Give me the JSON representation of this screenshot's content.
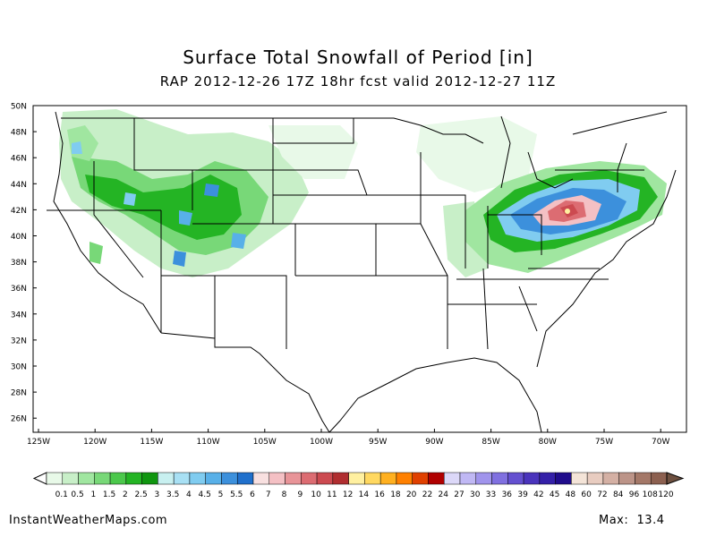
{
  "title": "Surface Total Snowfall of Period [in]",
  "subtitle": "RAP 2012-12-26 17Z 18hr fcst valid 2012-12-27 11Z",
  "lat_labels": [
    "50N",
    "48N",
    "46N",
    "44N",
    "42N",
    "40N",
    "38N",
    "36N",
    "34N",
    "32N",
    "30N",
    "28N",
    "26N"
  ],
  "lon_labels": [
    "125W",
    "120W",
    "115W",
    "110W",
    "105W",
    "100W",
    "95W",
    "90W",
    "85W",
    "80W",
    "75W",
    "70W"
  ],
  "legend": {
    "labels": [
      "0.1",
      "0.5",
      "1",
      "1.5",
      "2",
      "2.5",
      "3",
      "3.5",
      "4",
      "4.5",
      "5",
      "5.5",
      "6",
      "7",
      "8",
      "9",
      "10",
      "11",
      "12",
      "14",
      "16",
      "18",
      "20",
      "22",
      "24",
      "27",
      "30",
      "33",
      "36",
      "39",
      "42",
      "45",
      "48",
      "60",
      "72",
      "84",
      "96",
      "108",
      "120"
    ],
    "colors": [
      "#e8f9e8",
      "#c8efc8",
      "#a0e6a0",
      "#78d878",
      "#4cc84c",
      "#24b424",
      "#109610",
      "#c8f0f0",
      "#a8e0f4",
      "#80ccf0",
      "#58b0e8",
      "#3c90dc",
      "#2070cc",
      "#f8e0e0",
      "#f4c0c4",
      "#e89498",
      "#dc6c72",
      "#cc4a50",
      "#b02e30",
      "#fff0a0",
      "#ffd860",
      "#ffb020",
      "#ff8000",
      "#e04000",
      "#b00000",
      "#dcd8f8",
      "#c0b8f4",
      "#a094ec",
      "#8070e0",
      "#6450d0",
      "#4a34bc",
      "#3420a8",
      "#200c8c",
      "#f4e4d8",
      "#e8ccc0",
      "#d4b0a4",
      "#bc9488",
      "#a47868",
      "#8c6050"
    ]
  },
  "credit": "InstantWeatherMaps.com",
  "max_label": "Max:",
  "max_value": "13.4"
}
